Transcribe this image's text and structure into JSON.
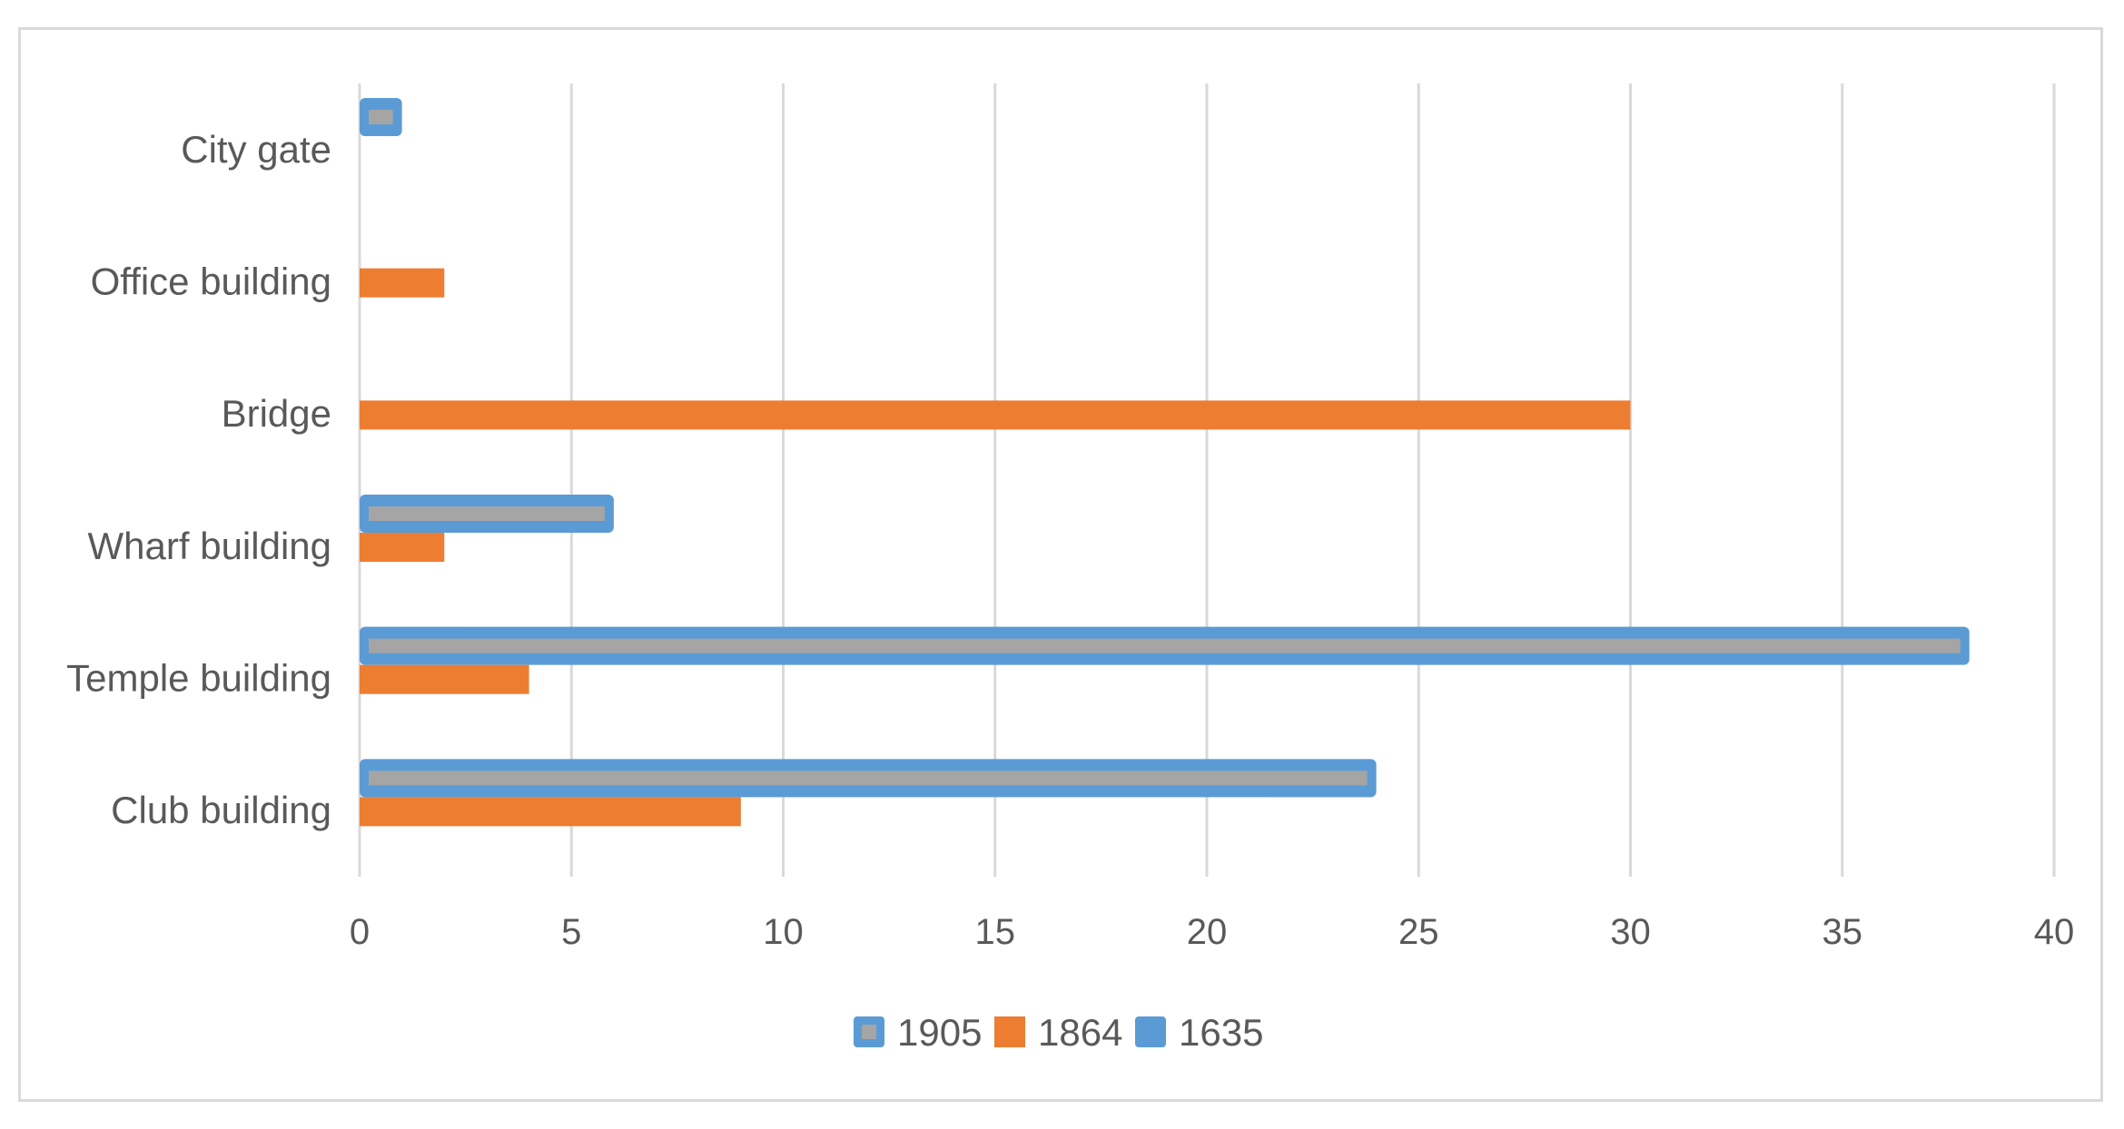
{
  "chart_data": {
    "type": "bar",
    "orientation": "horizontal",
    "categories": [
      "City gate",
      "Office building",
      "Bridge",
      "Wharf building",
      "Temple building",
      "Club building"
    ],
    "series": [
      {
        "name": "1905",
        "color": "#5b9bd5",
        "values": [
          1,
          0,
          0,
          6,
          38,
          24
        ]
      },
      {
        "name": "1864",
        "color": "#ed7d31",
        "values": [
          0,
          2,
          30,
          2,
          4,
          9
        ]
      },
      {
        "name": "1635",
        "color": "#a5a5a5",
        "values": [
          1,
          0,
          0,
          6,
          38,
          24
        ]
      }
    ],
    "xlim": [
      0,
      40
    ],
    "x_ticks": [
      "0",
      "5",
      "10",
      "15",
      "20",
      "25",
      "30",
      "35",
      "40"
    ],
    "grid": true,
    "legend": "bottom",
    "title": "",
    "xlabel": "",
    "ylabel": ""
  }
}
